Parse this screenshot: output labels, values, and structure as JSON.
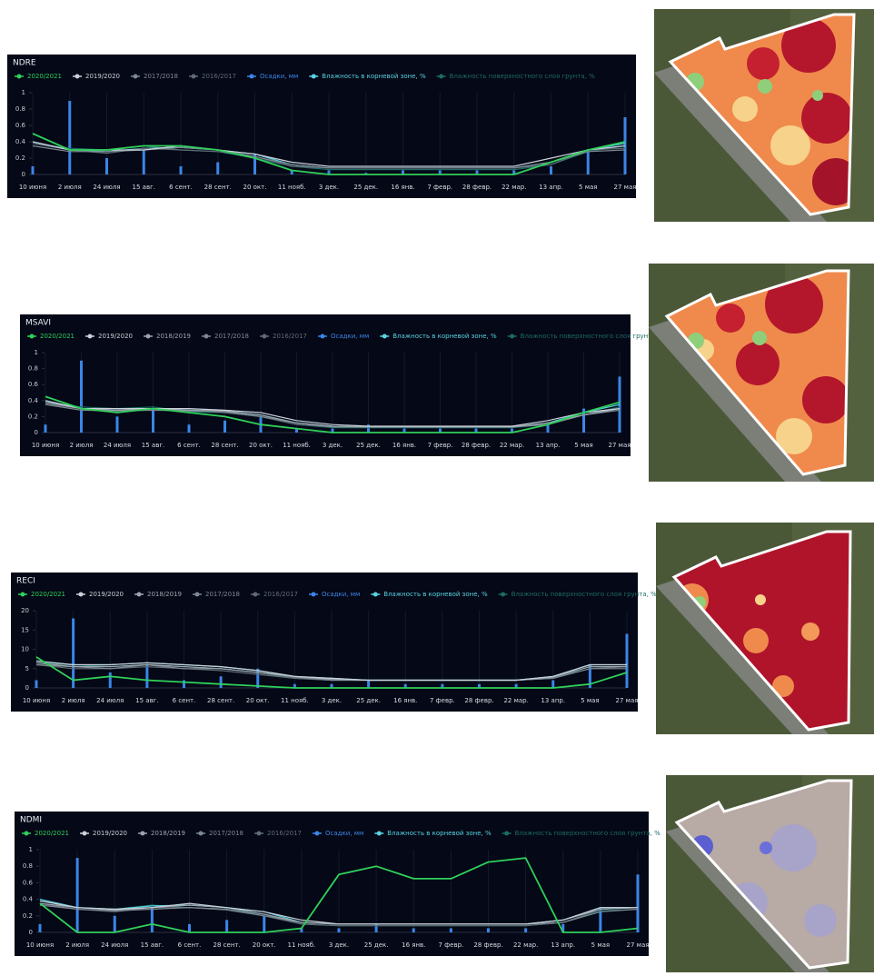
{
  "chart_data": [
    {
      "type": "line",
      "title": "NDRE",
      "categories": [
        "10 июня",
        "2 июля",
        "24 июля",
        "15 авг.",
        "6 сент.",
        "28 сент.",
        "20 окт.",
        "11 нояб.",
        "3 дек.",
        "25 дек.",
        "16 янв.",
        "7 февр.",
        "28 февр.",
        "22 мар.",
        "13 апр.",
        "5 мая",
        "27 мая"
      ],
      "ylim": [
        0,
        1
      ],
      "yticks": [
        0,
        0.2,
        0.4,
        0.6,
        0.8,
        1
      ],
      "series": [
        {
          "name": "2020/2021",
          "color": "#2fd05a",
          "values": [
            0.5,
            0.3,
            0.3,
            0.35,
            0.35,
            0.3,
            0.2,
            0.05,
            0,
            0,
            0,
            0,
            0,
            0,
            0.15,
            0.3,
            0.4
          ]
        },
        {
          "name": "2019/2020",
          "color": "#c9d1d9",
          "values": [
            0.4,
            0.3,
            0.3,
            0.3,
            0.35,
            0.3,
            0.25,
            0.15,
            0.1,
            0.1,
            0.1,
            0.1,
            0.1,
            0.1,
            0.2,
            0.3,
            0.35
          ]
        },
        {
          "name": "2017/2018",
          "color": "#7d8993",
          "values": [
            0.35,
            0.28,
            0.28,
            0.3,
            0.33,
            0.3,
            0.22,
            0.12,
            0.08,
            0.08,
            0.08,
            0.08,
            0.08,
            0.08,
            0.15,
            0.28,
            0.3
          ]
        },
        {
          "name": "2016/2017",
          "color": "#5f6b75",
          "values": [
            0.38,
            0.3,
            0.26,
            0.32,
            0.3,
            0.28,
            0.22,
            0.1,
            0.08,
            0.08,
            0.08,
            0.08,
            0.08,
            0.08,
            0.12,
            0.3,
            0.32
          ]
        },
        {
          "name": "Осадки, мм",
          "color": "#3a86e8",
          "type": "bar",
          "values": [
            0.1,
            0.9,
            0.2,
            0.3,
            0.1,
            0.15,
            0.25,
            0.05,
            0.05,
            0.02,
            0.05,
            0.05,
            0.05,
            0.05,
            0.1,
            0.3,
            0.7
          ]
        },
        {
          "name": "Влажность в корневой зоне, %",
          "color": "#57d3e3",
          "values": [
            0.4,
            0.3,
            0.28,
            0.32,
            0.33,
            0.3,
            0.25,
            0.12,
            0.08,
            0.08,
            0.08,
            0.08,
            0.08,
            0.08,
            0.15,
            0.3,
            0.38
          ]
        },
        {
          "name": "Влажность поверхностного слоя грунта, %",
          "color": "#1c6b66",
          "values": [
            0.38,
            0.32,
            0.3,
            0.35,
            0.3,
            0.28,
            0.2,
            0.1,
            0.06,
            0.06,
            0.06,
            0.06,
            0.06,
            0.06,
            0.12,
            0.28,
            0.35
          ]
        }
      ]
    },
    {
      "type": "line",
      "title": "MSAVI",
      "categories": [
        "10 июня",
        "2 июля",
        "24 июля",
        "15 авг.",
        "6 сент.",
        "28 сент.",
        "20 окт.",
        "11 нояб.",
        "3 дек.",
        "25 дек.",
        "16 янв.",
        "7 февр.",
        "28 февр.",
        "22 мар.",
        "13 апр.",
        "5 мая",
        "27 мая"
      ],
      "ylim": [
        0,
        1
      ],
      "yticks": [
        0,
        0.2,
        0.4,
        0.6,
        0.8,
        1
      ],
      "series": [
        {
          "name": "2020/2021",
          "color": "#2fd05a",
          "values": [
            0.45,
            0.3,
            0.25,
            0.3,
            0.25,
            0.2,
            0.1,
            0.05,
            0,
            0,
            0,
            0,
            0,
            0,
            0.1,
            0.25,
            0.38
          ]
        },
        {
          "name": "2019/2020",
          "color": "#c9d1d9",
          "values": [
            0.4,
            0.3,
            0.3,
            0.3,
            0.3,
            0.28,
            0.25,
            0.15,
            0.1,
            0.08,
            0.08,
            0.08,
            0.08,
            0.08,
            0.15,
            0.25,
            0.3
          ]
        },
        {
          "name": "2018/2019",
          "color": "#9aa5ae",
          "values": [
            0.38,
            0.3,
            0.28,
            0.3,
            0.28,
            0.27,
            0.22,
            0.12,
            0.08,
            0.07,
            0.07,
            0.07,
            0.07,
            0.07,
            0.12,
            0.22,
            0.3
          ]
        },
        {
          "name": "2017/2018",
          "color": "#7d8993",
          "values": [
            0.35,
            0.28,
            0.27,
            0.28,
            0.27,
            0.26,
            0.2,
            0.12,
            0.07,
            0.07,
            0.07,
            0.07,
            0.07,
            0.07,
            0.1,
            0.22,
            0.28
          ]
        },
        {
          "name": "2016/2017",
          "color": "#5f6b75",
          "values": [
            0.36,
            0.3,
            0.27,
            0.3,
            0.28,
            0.25,
            0.2,
            0.1,
            0.07,
            0.07,
            0.07,
            0.07,
            0.07,
            0.07,
            0.1,
            0.25,
            0.3
          ]
        },
        {
          "name": "Осадки, мм",
          "color": "#3a86e8",
          "type": "bar",
          "values": [
            0.1,
            0.9,
            0.2,
            0.3,
            0.1,
            0.15,
            0.2,
            0.05,
            0.05,
            0.1,
            0.05,
            0.05,
            0.05,
            0.05,
            0.1,
            0.3,
            0.7
          ]
        },
        {
          "name": "Влажность в корневой зоне, %",
          "color": "#57d3e3",
          "values": [
            0.4,
            0.3,
            0.28,
            0.3,
            0.28,
            0.27,
            0.22,
            0.12,
            0.08,
            0.07,
            0.07,
            0.07,
            0.07,
            0.07,
            0.12,
            0.25,
            0.35
          ]
        },
        {
          "name": "Влажность поверхностного слоя грунта, %",
          "color": "#1c6b66",
          "values": [
            0.38,
            0.32,
            0.3,
            0.32,
            0.26,
            0.25,
            0.2,
            0.1,
            0.06,
            0.06,
            0.06,
            0.06,
            0.06,
            0.06,
            0.1,
            0.22,
            0.32
          ]
        }
      ]
    },
    {
      "type": "line",
      "title": "RECI",
      "categories": [
        "10 июня",
        "2 июля",
        "24 июля",
        "15 авг.",
        "6 сент.",
        "28 сент.",
        "20 окт.",
        "11 нояб.",
        "3 дек.",
        "25 дек.",
        "16 янв.",
        "7 февр.",
        "28 февр.",
        "22 мар.",
        "13 апр.",
        "5 мая",
        "27 мая"
      ],
      "ylim": [
        0,
        20
      ],
      "yticks": [
        0,
        5,
        10,
        15,
        20
      ],
      "series": [
        {
          "name": "2020/2021",
          "color": "#2fd05a",
          "values": [
            8,
            2,
            3,
            2,
            1.5,
            1,
            0.5,
            0,
            0,
            0,
            0,
            0,
            0,
            0,
            0,
            1,
            4
          ]
        },
        {
          "name": "2019/2020",
          "color": "#c9d1d9",
          "values": [
            7,
            6,
            6,
            6.5,
            6,
            5.5,
            4.5,
            3,
            2.5,
            2,
            2,
            2,
            2,
            2,
            3,
            6,
            6
          ]
        },
        {
          "name": "2018/2019",
          "color": "#9aa5ae",
          "values": [
            6.5,
            5.5,
            5.5,
            6,
            5.5,
            5,
            4,
            3,
            2.2,
            2,
            2,
            2,
            2,
            2,
            2.8,
            5.5,
            5.5
          ]
        },
        {
          "name": "2017/2018",
          "color": "#7d8993",
          "values": [
            6,
            5.5,
            5,
            6,
            5,
            5,
            4,
            2.8,
            2,
            2,
            2,
            2,
            2,
            2,
            2.5,
            5,
            5
          ]
        },
        {
          "name": "2016/2017",
          "color": "#5f6b75",
          "values": [
            6,
            5,
            5,
            5.5,
            5,
            4.5,
            3.5,
            2.5,
            2,
            2,
            2,
            2,
            2,
            2,
            2.5,
            5,
            5.5
          ]
        },
        {
          "name": "Осадки, мм",
          "color": "#3a86e8",
          "type": "bar",
          "values": [
            2,
            18,
            4,
            6,
            2,
            3,
            5,
            1,
            1,
            2,
            1,
            1,
            1,
            1,
            2,
            6,
            14
          ]
        },
        {
          "name": "Влажность в корневой зоне, %",
          "color": "#57d3e3",
          "values": [
            7,
            6,
            6,
            6.5,
            6,
            5.5,
            4.5,
            3,
            2.5,
            2,
            2,
            2,
            2,
            2,
            3,
            6,
            6
          ]
        },
        {
          "name": "Влажность поверхностного слоя грунта, %",
          "color": "#1c6b66",
          "values": [
            6.5,
            6,
            5.5,
            6,
            5.5,
            5,
            4,
            2.5,
            2,
            2,
            2,
            2,
            2,
            2,
            2.5,
            5.5,
            5.5
          ]
        }
      ]
    },
    {
      "type": "line",
      "title": "NDMI",
      "categories": [
        "10 июня",
        "2 июля",
        "24 июля",
        "15 авг.",
        "6 сент.",
        "28 сент.",
        "20 окт.",
        "11 нояб.",
        "3 дек.",
        "25 дек.",
        "16 янв.",
        "7 февр.",
        "28 февр.",
        "22 мар.",
        "13 апр.",
        "5 мая",
        "27 мая"
      ],
      "ylim": [
        0,
        1
      ],
      "yticks": [
        0,
        0.2,
        0.4,
        0.6,
        0.8,
        1
      ],
      "series": [
        {
          "name": "2020/2021",
          "color": "#2fd05a",
          "values": [
            0.35,
            0,
            0,
            0.1,
            0,
            0,
            0,
            0.05,
            0.7,
            0.8,
            0.65,
            0.65,
            0.85,
            0.9,
            0,
            0,
            0.05
          ]
        },
        {
          "name": "2019/2020",
          "color": "#c9d1d9",
          "values": [
            0.38,
            0.3,
            0.28,
            0.3,
            0.35,
            0.3,
            0.25,
            0.15,
            0.1,
            0.1,
            0.1,
            0.1,
            0.1,
            0.1,
            0.15,
            0.3,
            0.3
          ]
        },
        {
          "name": "2018/2019",
          "color": "#9aa5ae",
          "values": [
            0.35,
            0.3,
            0.27,
            0.3,
            0.33,
            0.3,
            0.22,
            0.12,
            0.1,
            0.1,
            0.1,
            0.1,
            0.1,
            0.1,
            0.15,
            0.28,
            0.3
          ]
        },
        {
          "name": "2017/2018",
          "color": "#7d8993",
          "values": [
            0.33,
            0.28,
            0.26,
            0.28,
            0.3,
            0.28,
            0.2,
            0.12,
            0.1,
            0.1,
            0.1,
            0.1,
            0.1,
            0.1,
            0.12,
            0.25,
            0.28
          ]
        },
        {
          "name": "2016/2017",
          "color": "#5f6b75",
          "values": [
            0.35,
            0.28,
            0.25,
            0.3,
            0.3,
            0.27,
            0.2,
            0.1,
            0.08,
            0.08,
            0.08,
            0.08,
            0.08,
            0.08,
            0.12,
            0.28,
            0.3
          ]
        },
        {
          "name": "Осадки, мм",
          "color": "#3a86e8",
          "type": "bar",
          "values": [
            0.1,
            0.9,
            0.2,
            0.3,
            0.1,
            0.15,
            0.2,
            0.05,
            0.05,
            0.1,
            0.05,
            0.05,
            0.05,
            0.05,
            0.1,
            0.3,
            0.7
          ]
        },
        {
          "name": "Влажность в корневой зоне, %",
          "color": "#57d3e3",
          "values": [
            0.4,
            0.3,
            0.28,
            0.32,
            0.33,
            0.3,
            0.25,
            0.12,
            0.1,
            0.1,
            0.1,
            0.1,
            0.1,
            0.1,
            0.15,
            0.3,
            0.3
          ]
        },
        {
          "name": "Влажность поверхностного слоя грунта, %",
          "color": "#1c6b66",
          "values": [
            0.38,
            0.3,
            0.28,
            0.33,
            0.3,
            0.28,
            0.22,
            0.1,
            0.08,
            0.08,
            0.08,
            0.08,
            0.08,
            0.08,
            0.12,
            0.26,
            0.28
          ]
        }
      ]
    }
  ]
}
